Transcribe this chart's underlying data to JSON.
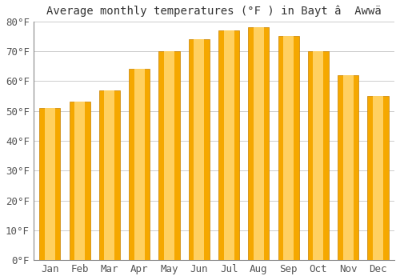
{
  "title": "Average monthly temperatures (°F ) in Bayt â  Awwä",
  "months": [
    "Jan",
    "Feb",
    "Mar",
    "Apr",
    "May",
    "Jun",
    "Jul",
    "Aug",
    "Sep",
    "Oct",
    "Nov",
    "Dec"
  ],
  "values": [
    51,
    53,
    57,
    64,
    70,
    74,
    77,
    78,
    75,
    70,
    62,
    55
  ],
  "bar_color_left": "#F5A800",
  "bar_color_center": "#FFD060",
  "bar_color_right": "#F5A800",
  "bar_edge_color": "#C88000",
  "background_color": "#FFFFFF",
  "plot_bg_color": "#FFFFFF",
  "ylim": [
    0,
    80
  ],
  "yticks": [
    0,
    10,
    20,
    30,
    40,
    50,
    60,
    70,
    80
  ],
  "ytick_labels": [
    "0°F",
    "10°F",
    "20°F",
    "30°F",
    "40°F",
    "50°F",
    "60°F",
    "70°F",
    "80°F"
  ],
  "grid_color": "#CCCCCC",
  "font_size_title": 10,
  "font_size_ticks": 9,
  "bar_width": 0.7
}
